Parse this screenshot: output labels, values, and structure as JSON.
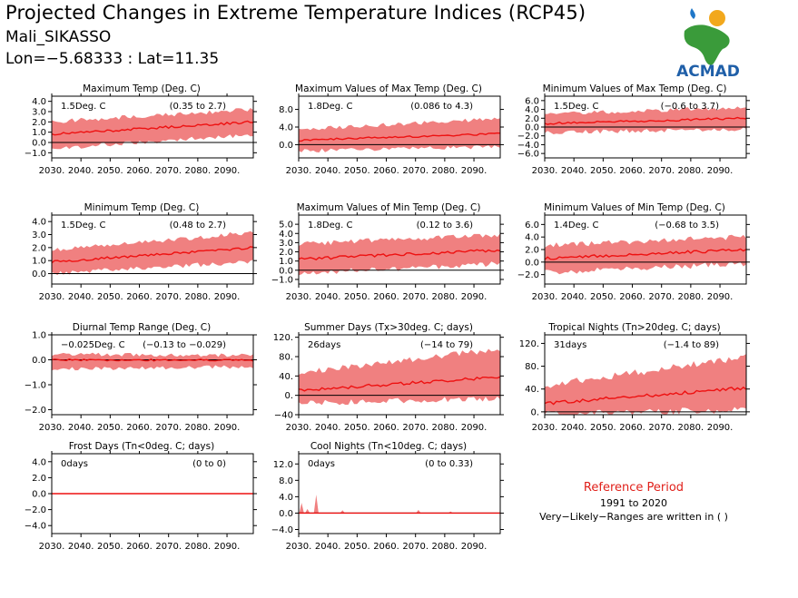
{
  "header": {
    "title": "Projected Changes in Extreme Temperature Indices (RCP45)",
    "station": "Mali_SIKASSO",
    "coords": "Lon=−5.68333 : Lat=11.35"
  },
  "logo": {
    "text": "ACMAD",
    "colors": {
      "africa": "#3a9b3a",
      "text": "#1f5fa8",
      "sun": "#f2a81d",
      "drop": "#1f77c8"
    }
  },
  "reference": {
    "title": "Reference Period",
    "years": "1991 to 2020",
    "note": "Very−Likely−Ranges are written in ( )"
  },
  "colors": {
    "band": "#f08080",
    "line": "#ee1111",
    "zero": "#000000"
  },
  "chart_data": [
    {
      "name": "Maximum Temp (Deg. C)",
      "type": "area",
      "x_ticks": [
        "2030.",
        "2040.",
        "2050.",
        "2060.",
        "2070.",
        "2080.",
        "2090."
      ],
      "xlim": [
        2030,
        2099
      ],
      "ylim": [
        -1.5,
        4.5
      ],
      "y_ticks": [
        -1.0,
        0.0,
        1.0,
        2.0,
        3.0,
        4.0
      ],
      "y_labels": [
        "−1.0",
        "0.0",
        "1.0",
        "2.0",
        "3.0",
        "4.0"
      ],
      "median": "1.5Deg. C",
      "range": "(0.35 to 2.7)",
      "series": {
        "start": 0.8,
        "end": 2.0,
        "low_start": -0.4,
        "low_end": 1.0,
        "high_start": 1.8,
        "high_end": 3.0,
        "noise": 0.15
      }
    },
    {
      "name": "Maximum Values of Max Temp (Deg. C)",
      "type": "area",
      "x_ticks": [
        "2030.",
        "2040.",
        "2050.",
        "2060.",
        "2070.",
        "2080.",
        "2090."
      ],
      "xlim": [
        2030,
        2099
      ],
      "ylim": [
        -3,
        11
      ],
      "y_ticks": [
        0.0,
        4.0,
        8.0
      ],
      "y_labels": [
        "0.0",
        "4.0",
        "8.0"
      ],
      "median": "1.8Deg. C",
      "range": "(0.086 to 4.3)",
      "series": {
        "start": 1.0,
        "end": 2.5,
        "low_start": -1.0,
        "low_end": 0.0,
        "high_start": 3.0,
        "high_end": 5.5,
        "noise": 0.3
      }
    },
    {
      "name": "Minimum Values of Max Temp (Deg. C)",
      "type": "area",
      "x_ticks": [
        "2030.",
        "2040.",
        "2050.",
        "2060.",
        "2070.",
        "2080.",
        "2090."
      ],
      "xlim": [
        2030,
        2099
      ],
      "ylim": [
        -7,
        7
      ],
      "y_ticks": [
        -6.0,
        -4.0,
        -2.0,
        0.0,
        2.0,
        4.0,
        6.0
      ],
      "y_labels": [
        "−6.0",
        "−4.0",
        "−2.0",
        "0.0",
        "2.0",
        "4.0",
        "6.0"
      ],
      "median": "1.5Deg. C",
      "range": "(−0.6 to 3.7)",
      "series": {
        "start": 0.8,
        "end": 2.0,
        "low_start": -0.8,
        "low_end": 0.0,
        "high_start": 2.5,
        "high_end": 4.0,
        "noise": 0.3
      }
    },
    {
      "name": "Minimum Temp (Deg. C)",
      "type": "area",
      "x_ticks": [
        "2030.",
        "2040.",
        "2050.",
        "2060.",
        "2070.",
        "2080.",
        "2090."
      ],
      "xlim": [
        2030,
        2099
      ],
      "ylim": [
        -0.8,
        4.5
      ],
      "y_ticks": [
        0.0,
        1.0,
        2.0,
        3.0,
        4.0
      ],
      "y_labels": [
        "0.0",
        "1.0",
        "2.0",
        "3.0",
        "4.0"
      ],
      "median": "1.5Deg. C",
      "range": "(0.48 to 2.7)",
      "series": {
        "start": 0.9,
        "end": 2.0,
        "low_start": 0.2,
        "low_end": 1.1,
        "high_start": 1.6,
        "high_end": 3.0,
        "noise": 0.12
      }
    },
    {
      "name": "Maximum Values of Min Temp (Deg. C)",
      "type": "area",
      "x_ticks": [
        "2030.",
        "2040.",
        "2050.",
        "2060.",
        "2070.",
        "2080.",
        "2090."
      ],
      "xlim": [
        2030,
        2099
      ],
      "ylim": [
        -1.5,
        6
      ],
      "y_ticks": [
        -1.0,
        0.0,
        1.0,
        2.0,
        3.0,
        4.0,
        5.0
      ],
      "y_labels": [
        "−1.0",
        "0.0",
        "1.0",
        "2.0",
        "3.0",
        "4.0",
        "5.0"
      ],
      "median": "1.8Deg. C",
      "range": "(0.12 to 3.6)",
      "series": {
        "start": 1.2,
        "end": 2.2,
        "low_start": 0.0,
        "low_end": 1.0,
        "high_start": 2.5,
        "high_end": 3.6,
        "noise": 0.2
      }
    },
    {
      "name": "Minimum Values of Min Temp (Deg. C)",
      "type": "area",
      "x_ticks": [
        "2030.",
        "2040.",
        "2050.",
        "2060.",
        "2070.",
        "2080.",
        "2090."
      ],
      "xlim": [
        2030,
        2099
      ],
      "ylim": [
        -3.5,
        7.5
      ],
      "y_ticks": [
        -2.0,
        0.0,
        2.0,
        4.0,
        6.0
      ],
      "y_labels": [
        "−2.0",
        "0.0",
        "2.0",
        "4.0",
        "6.0"
      ],
      "median": "1.4Deg. C",
      "range": "(−0.68 to 3.5)",
      "series": {
        "start": 0.6,
        "end": 2.0,
        "low_start": -1.2,
        "low_end": 0.2,
        "high_start": 2.2,
        "high_end": 3.6,
        "noise": 0.3
      }
    },
    {
      "name": "Diurnal Temp Range (Deg. C)",
      "type": "area",
      "x_ticks": [
        "2030.",
        "2040.",
        "2050.",
        "2060.",
        "2070.",
        "2080.",
        "2090."
      ],
      "xlim": [
        2030,
        2099
      ],
      "ylim": [
        -2.2,
        1.0
      ],
      "y_ticks": [
        -2.0,
        -1.0,
        0.0,
        1.0
      ],
      "y_labels": [
        "−2.0",
        "−1.0",
        "0.0",
        "1.0"
      ],
      "median": "−0.025Deg. C",
      "range": "(−0.13 to −0.029)",
      "series": {
        "start": 0.0,
        "end": -0.02,
        "low_start": -0.3,
        "low_end": -0.2,
        "high_start": 0.15,
        "high_end": 0.1,
        "noise": 0.05
      }
    },
    {
      "name": "Summer Days (Tx>30deg. C; days)",
      "type": "area",
      "x_ticks": [
        "2030.",
        "2040.",
        "2050.",
        "2060.",
        "2070.",
        "2080.",
        "2090."
      ],
      "xlim": [
        2030,
        2099
      ],
      "ylim": [
        -40,
        125
      ],
      "y_ticks": [
        -40,
        0,
        40,
        80,
        120
      ],
      "y_labels": [
        "−40",
        "0.",
        "40.",
        "80.",
        "120."
      ],
      "median": "26days",
      "range": "(−14 to 79)",
      "series": {
        "start": 10,
        "end": 38,
        "low_start": -10,
        "low_end": 0,
        "high_start": 40,
        "high_end": 90,
        "noise": 4
      }
    },
    {
      "name": "Tropical Nights (Tn>20deg. C; days)",
      "type": "area",
      "x_ticks": [
        "2030.",
        "2040.",
        "2050.",
        "2060.",
        "2070.",
        "2080.",
        "2090."
      ],
      "xlim": [
        2030,
        2099
      ],
      "ylim": [
        -5,
        135
      ],
      "y_ticks": [
        0,
        40,
        80,
        120
      ],
      "y_labels": [
        "0.",
        "40.",
        "80.",
        "120."
      ],
      "median": "31days",
      "range": "(−1.4 to 89)",
      "series": {
        "start": 15,
        "end": 42,
        "low_start": 2,
        "low_end": 10,
        "high_start": 40,
        "high_end": 90,
        "noise": 4
      }
    },
    {
      "name": "Frost Days (Tn<0deg. C; days)",
      "type": "area",
      "x_ticks": [
        "2030.",
        "2040.",
        "2050.",
        "2060.",
        "2070.",
        "2080.",
        "2090."
      ],
      "xlim": [
        2030,
        2099
      ],
      "ylim": [
        -5,
        5
      ],
      "y_ticks": [
        -4.0,
        -2.0,
        0.0,
        2.0,
        4.0
      ],
      "y_labels": [
        "−4.0",
        "−2.0",
        "0.0",
        "2.0",
        "4.0"
      ],
      "median": "0days",
      "range": "(0 to 0)",
      "series": {
        "start": 0,
        "end": 0,
        "low_start": 0,
        "low_end": 0,
        "high_start": 0,
        "high_end": 0,
        "noise": 0
      }
    },
    {
      "name": "Cool Nights (Tn<10deg. C; days)",
      "type": "area",
      "x_ticks": [
        "2030.",
        "2040.",
        "2050.",
        "2060.",
        "2070.",
        "2080.",
        "2090."
      ],
      "xlim": [
        2030,
        2099
      ],
      "ylim": [
        -5,
        14.5
      ],
      "y_ticks": [
        -4.0,
        0.0,
        4.0,
        8.0,
        12.0
      ],
      "y_labels": [
        "−4.0",
        "0.0",
        "4.0",
        "8.0",
        "12.0"
      ],
      "median": "0days",
      "range": "(0 to 0.33)",
      "series": {
        "start": 0,
        "end": 0,
        "low_start": 0,
        "low_end": 0,
        "high_start": 0,
        "high_end": 0,
        "noise": 0,
        "spikes": [
          [
            2031,
            2.5
          ],
          [
            2033,
            1.0
          ],
          [
            2036,
            4.5
          ],
          [
            2045,
            0.7
          ],
          [
            2071,
            0.8
          ],
          [
            2082,
            0.4
          ]
        ]
      }
    }
  ]
}
